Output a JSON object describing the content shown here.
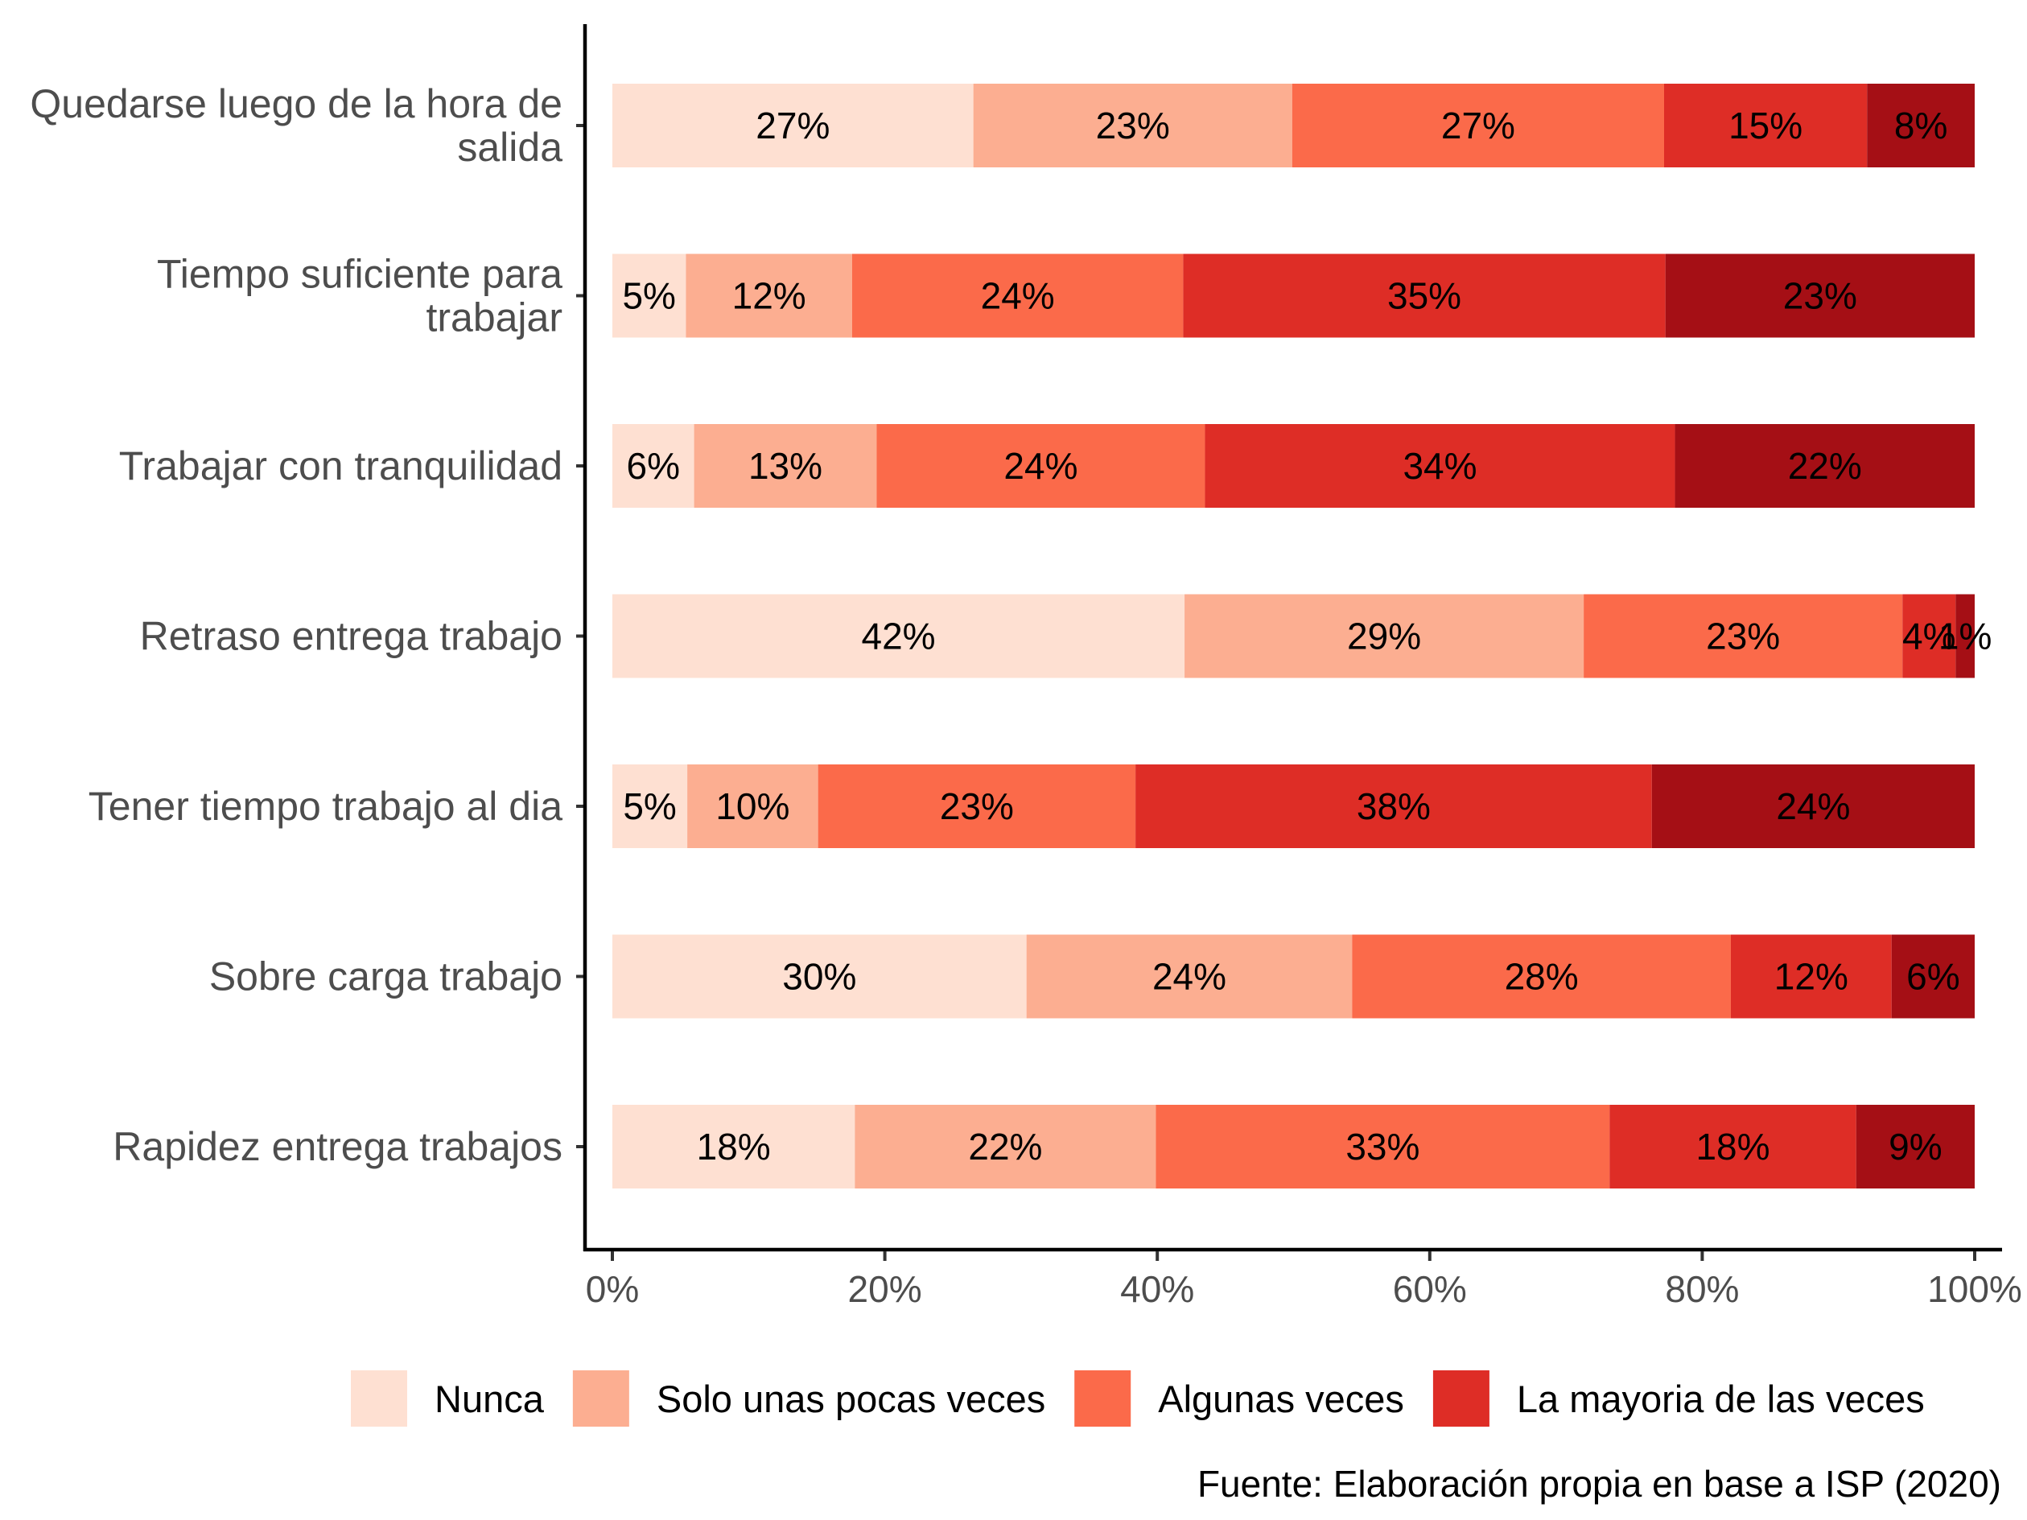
{
  "chart_data": {
    "type": "bar",
    "orientation": "horizontal",
    "stacked": true,
    "categories": [
      "Quedarse luego de la hora de salida",
      "Tiempo suficiente para trabajar",
      "Trabajar con tranquilidad",
      "Retraso entrega trabajo",
      "Tener tiempo trabajo al dia",
      "Sobre carga trabajo",
      "Rapidez entrega trabajos"
    ],
    "category_lines": [
      [
        "Quedarse luego de la hora de",
        "salida"
      ],
      [
        "Tiempo suficiente para",
        "trabajar"
      ],
      [
        "Trabajar con tranquilidad"
      ],
      [
        "Retraso entrega trabajo"
      ],
      [
        "Tener tiempo trabajo al dia"
      ],
      [
        "Sobre carga trabajo"
      ],
      [
        "Rapidez entrega trabajos"
      ]
    ],
    "series": [
      {
        "name": "Nunca",
        "color": "#fee0d2",
        "values": [
          26.5,
          5.4,
          6.0,
          42.0,
          5.5,
          30.4,
          17.8
        ]
      },
      {
        "name": "Solo unas pocas veces",
        "color": "#fcae91",
        "values": [
          23.4,
          12.2,
          13.4,
          29.3,
          9.6,
          23.9,
          22.1
        ]
      },
      {
        "name": "Algunas veces",
        "color": "#fb6a4a",
        "values": [
          27.3,
          24.3,
          24.1,
          23.4,
          23.3,
          27.8,
          33.3
        ]
      },
      {
        "name": "La mayoria de las veces",
        "color": "#de2d26",
        "values": [
          14.9,
          35.4,
          34.5,
          3.9,
          37.9,
          11.8,
          18.1
        ]
      },
      {
        "name": "",
        "color": "#a50f15",
        "values": [
          7.9,
          22.7,
          22.0,
          1.4,
          23.7,
          6.1,
          8.7
        ]
      }
    ],
    "data_labels": [
      [
        "27%",
        "23%",
        "27%",
        "15%",
        "8%"
      ],
      [
        "5%",
        "12%",
        "24%",
        "35%",
        "23%"
      ],
      [
        "6%",
        "13%",
        "24%",
        "34%",
        "22%"
      ],
      [
        "42%",
        "29%",
        "23%",
        "4%",
        "1%"
      ],
      [
        "5%",
        "10%",
        "23%",
        "38%",
        "24%"
      ],
      [
        "30%",
        "24%",
        "28%",
        "12%",
        "6%"
      ],
      [
        "18%",
        "22%",
        "33%",
        "18%",
        "9%"
      ]
    ],
    "x_ticks": [
      "0%",
      "20%",
      "40%",
      "60%",
      "80%",
      "100%"
    ],
    "xlim": [
      0,
      100
    ],
    "xlabel": "",
    "ylabel": "",
    "grid": false,
    "legend_position": "bottom",
    "caption": "Fuente: Elaboración propia en base a ISP (2020)"
  }
}
